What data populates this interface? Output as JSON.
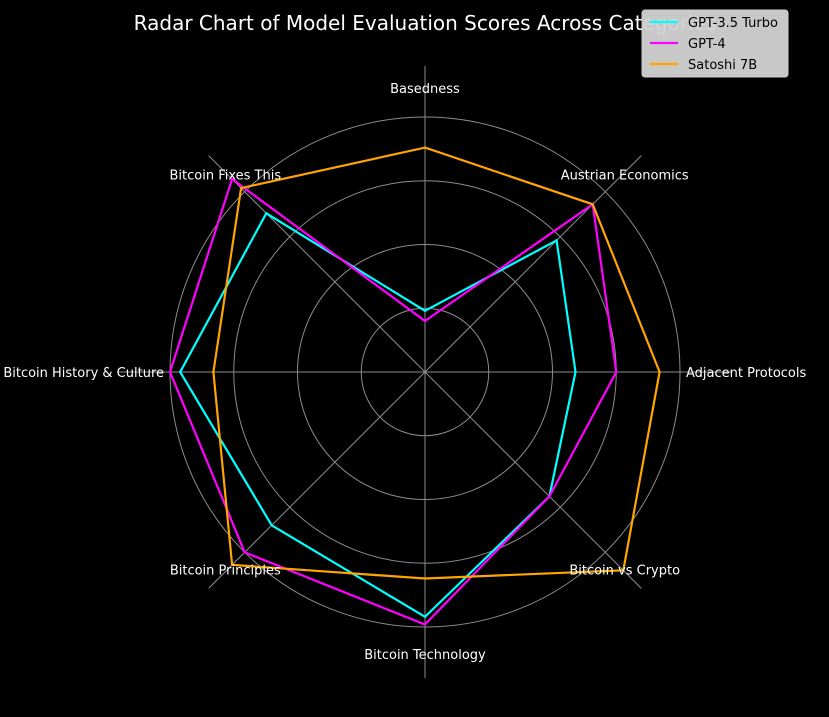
{
  "chart_data": {
    "type": "radar",
    "title": "Radar Chart of Model Evaluation Scores Across Categories",
    "categories": [
      "Basedness",
      "Austrian Economics",
      "Adjacent Protocols",
      "Bitcoin vs Crypto",
      "Bitcoin Technology",
      "Bitcoin Principles",
      "Bitcoin History & Culture",
      "Bitcoin Fixes This"
    ],
    "rlim": [
      0,
      1
    ],
    "grid": true,
    "legend_position": "top-right",
    "series": [
      {
        "name": "GPT-3.5 Turbo",
        "color": "#00ffff",
        "values": [
          0.24,
          0.73,
          0.59,
          0.69,
          0.96,
          0.85,
          0.96,
          0.88
        ]
      },
      {
        "name": "GPT-4",
        "color": "#ff00ff",
        "values": [
          0.2,
          0.93,
          0.75,
          0.69,
          0.99,
          1.0,
          1.0,
          1.07
        ]
      },
      {
        "name": "Satoshi 7B",
        "color": "#ffa500",
        "values": [
          0.88,
          0.93,
          0.92,
          1.1,
          0.81,
          1.07,
          0.83,
          1.02
        ]
      }
    ]
  }
}
